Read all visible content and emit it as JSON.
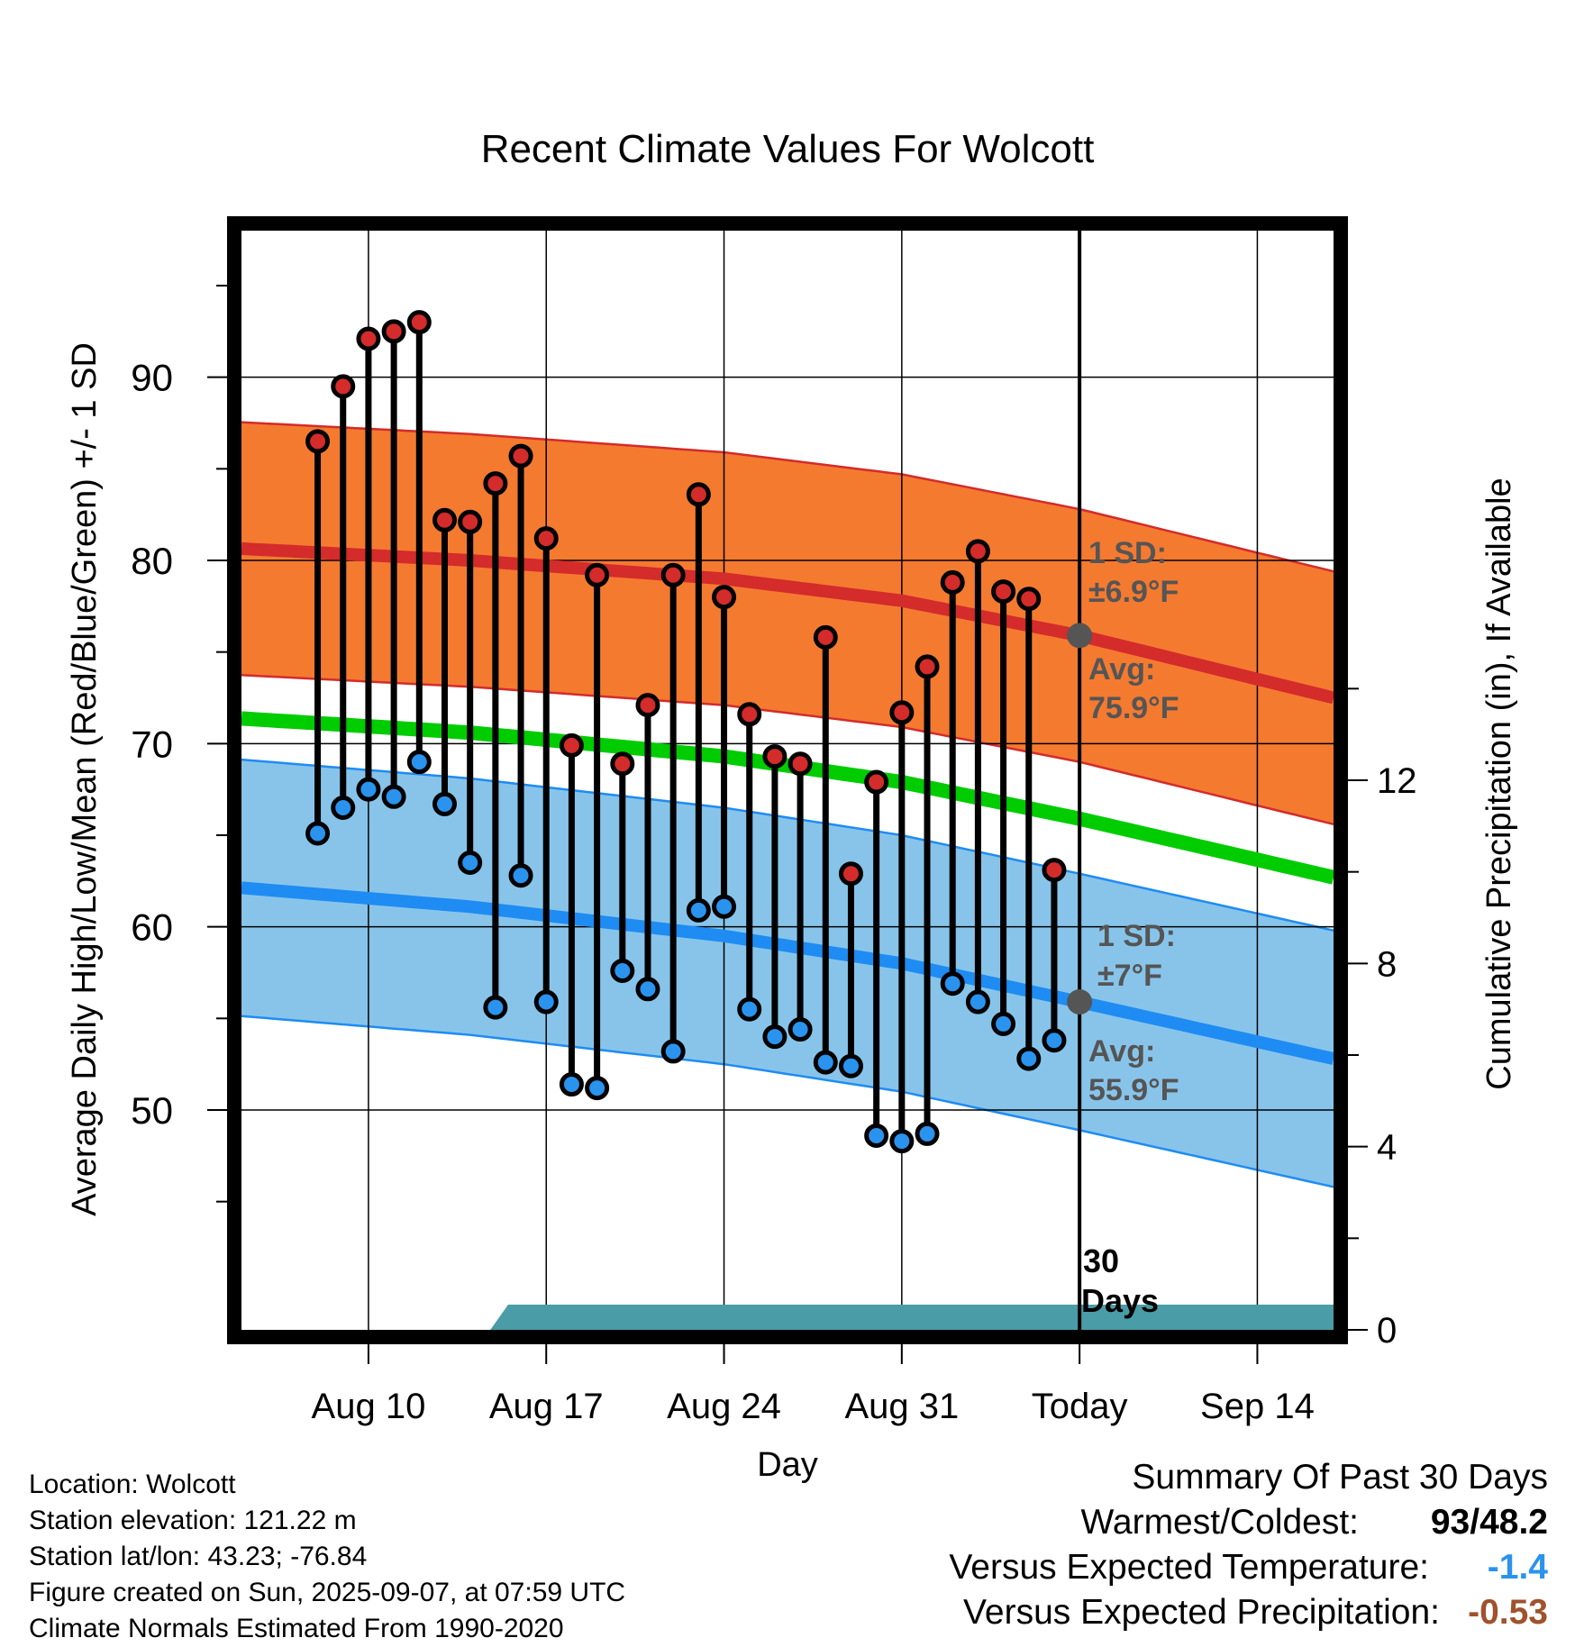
{
  "chart_data": {
    "type": "line",
    "title": "Recent Climate Values For Wolcott",
    "xlabel": "Day",
    "ylabel_left": "Average Daily High/Low/Mean (Red/Blue/Green) +/- 1 SD",
    "ylabel_right": "Cumulative Precipitation (in), If Available",
    "x_range_days": [
      -33,
      10
    ],
    "x_ticks": [
      {
        "day": -28,
        "label": "Aug 10"
      },
      {
        "day": -21,
        "label": "Aug 17"
      },
      {
        "day": -14,
        "label": "Aug 24"
      },
      {
        "day": -7,
        "label": "Aug 31"
      },
      {
        "day": 0,
        "label": "Today"
      },
      {
        "day": 7,
        "label": "Sep 14"
      }
    ],
    "y_left_range": [
      38,
      98
    ],
    "y_left_ticks": [
      50,
      60,
      70,
      80,
      90
    ],
    "y_right_range": [
      0,
      24
    ],
    "y_right_ticks": [
      0,
      4,
      8,
      12
    ],
    "grid": true,
    "normal_high": {
      "days": [
        -31,
        -24,
        -14,
        -7,
        0,
        10
      ],
      "mean": [
        80.5,
        80.0,
        79.0,
        77.8,
        75.9,
        72.5
      ],
      "sd": 6.9
    },
    "normal_low": {
      "days": [
        -31,
        -24,
        -14,
        -7,
        0,
        10
      ],
      "mean": [
        61.9,
        61.1,
        59.5,
        58.0,
        55.9,
        52.8
      ],
      "sd": 7.0
    },
    "normal_mean": {
      "days": [
        -31,
        -24,
        -14,
        -7,
        0,
        10
      ],
      "values": [
        71.2,
        70.6,
        69.3,
        67.9,
        65.9,
        62.7
      ]
    },
    "observed": {
      "days": [
        -30,
        -29,
        -28,
        -27,
        -26,
        -25,
        -24,
        -23,
        -22,
        -21,
        -20,
        -19,
        -18,
        -17,
        -16,
        -15,
        -14,
        -13,
        -12,
        -11,
        -10,
        -9,
        -8,
        -7,
        -6,
        -5,
        -4,
        -3,
        -2,
        -1
      ],
      "highs": [
        86.5,
        89.5,
        92.1,
        92.5,
        93.0,
        82.2,
        82.1,
        84.2,
        85.7,
        81.2,
        69.9,
        79.2,
        68.9,
        72.1,
        79.2,
        83.6,
        78.0,
        71.6,
        69.3,
        68.9,
        75.8,
        62.9,
        67.9,
        71.7,
        74.2,
        78.8,
        80.5,
        78.3,
        77.9,
        63.1
      ],
      "lows": [
        65.1,
        66.5,
        67.5,
        67.1,
        69.0,
        66.7,
        63.5,
        55.6,
        62.8,
        55.9,
        51.4,
        51.2,
        57.6,
        56.6,
        53.2,
        60.9,
        61.1,
        55.5,
        54.0,
        54.4,
        52.6,
        52.4,
        48.6,
        48.3,
        48.7,
        56.9,
        55.9,
        54.7,
        52.8,
        53.8
      ]
    },
    "precip_cumulative": {
      "days": [
        -23.2,
        -22.5,
        -21,
        -20,
        -19.2,
        -18,
        -17.2,
        -16.5,
        -15.5,
        -14.5,
        -13.5,
        -13,
        -12,
        -11,
        -10,
        -9,
        -8,
        -7,
        -6,
        -5,
        -4,
        -3,
        -2,
        -1,
        0,
        10
      ],
      "values": [
        0,
        0.55,
        0.55,
        0.55,
        0.55,
        0.55,
        0.55,
        0.55,
        0.55,
        0.55,
        0.55,
        0.55,
        0.55,
        0.55,
        0.55,
        0.55,
        0.55,
        0.55,
        0.55,
        0.55,
        0.55,
        0.55,
        0.55,
        0.55,
        0.55,
        0.55
      ]
    },
    "annotations": {
      "high_sd": "1 SD:",
      "high_sd_value": "±6.9°F",
      "high_avg": "Avg:",
      "high_avg_value": "75.9°F",
      "low_sd": "1 SD:",
      "low_sd_value": "±7°F",
      "low_avg": "Avg:",
      "low_avg_value": "55.9°F",
      "window_line1": "30",
      "window_line2": "Days"
    },
    "colors": {
      "high_band": "#f47a30",
      "high_line": "#d42b2b",
      "low_band": "#88c4ea",
      "low_line": "#1e8cf2",
      "mean_line": "#00cc00",
      "precip_fill": "#4a9ca6",
      "high_dot": "#d42b2b",
      "low_dot": "#2a93ee",
      "annotation": "#555555",
      "vs_temp": "#2a93ee",
      "vs_precip": "#a0522d"
    }
  },
  "footer": {
    "location": "Location: Wolcott",
    "elevation": "Station elevation: 121.22 m",
    "latlon": "Station lat/lon: 43.23; -76.84",
    "created": "Figure created on Sun, 2025-09-07, at 07:59 UTC",
    "normals": "Climate Normals Estimated From 1990-2020"
  },
  "summary": {
    "heading": "Summary Of Past 30 Days",
    "warmest_label": "Warmest/Coldest:",
    "warmest_value": "93",
    "separator": "/",
    "coldest_value": "48.2",
    "vs_temp_label": "Versus Expected Temperature:",
    "vs_temp_value": "-1.4",
    "vs_precip_label": "Versus Expected Precipitation:",
    "vs_precip_value": "-0.53"
  }
}
